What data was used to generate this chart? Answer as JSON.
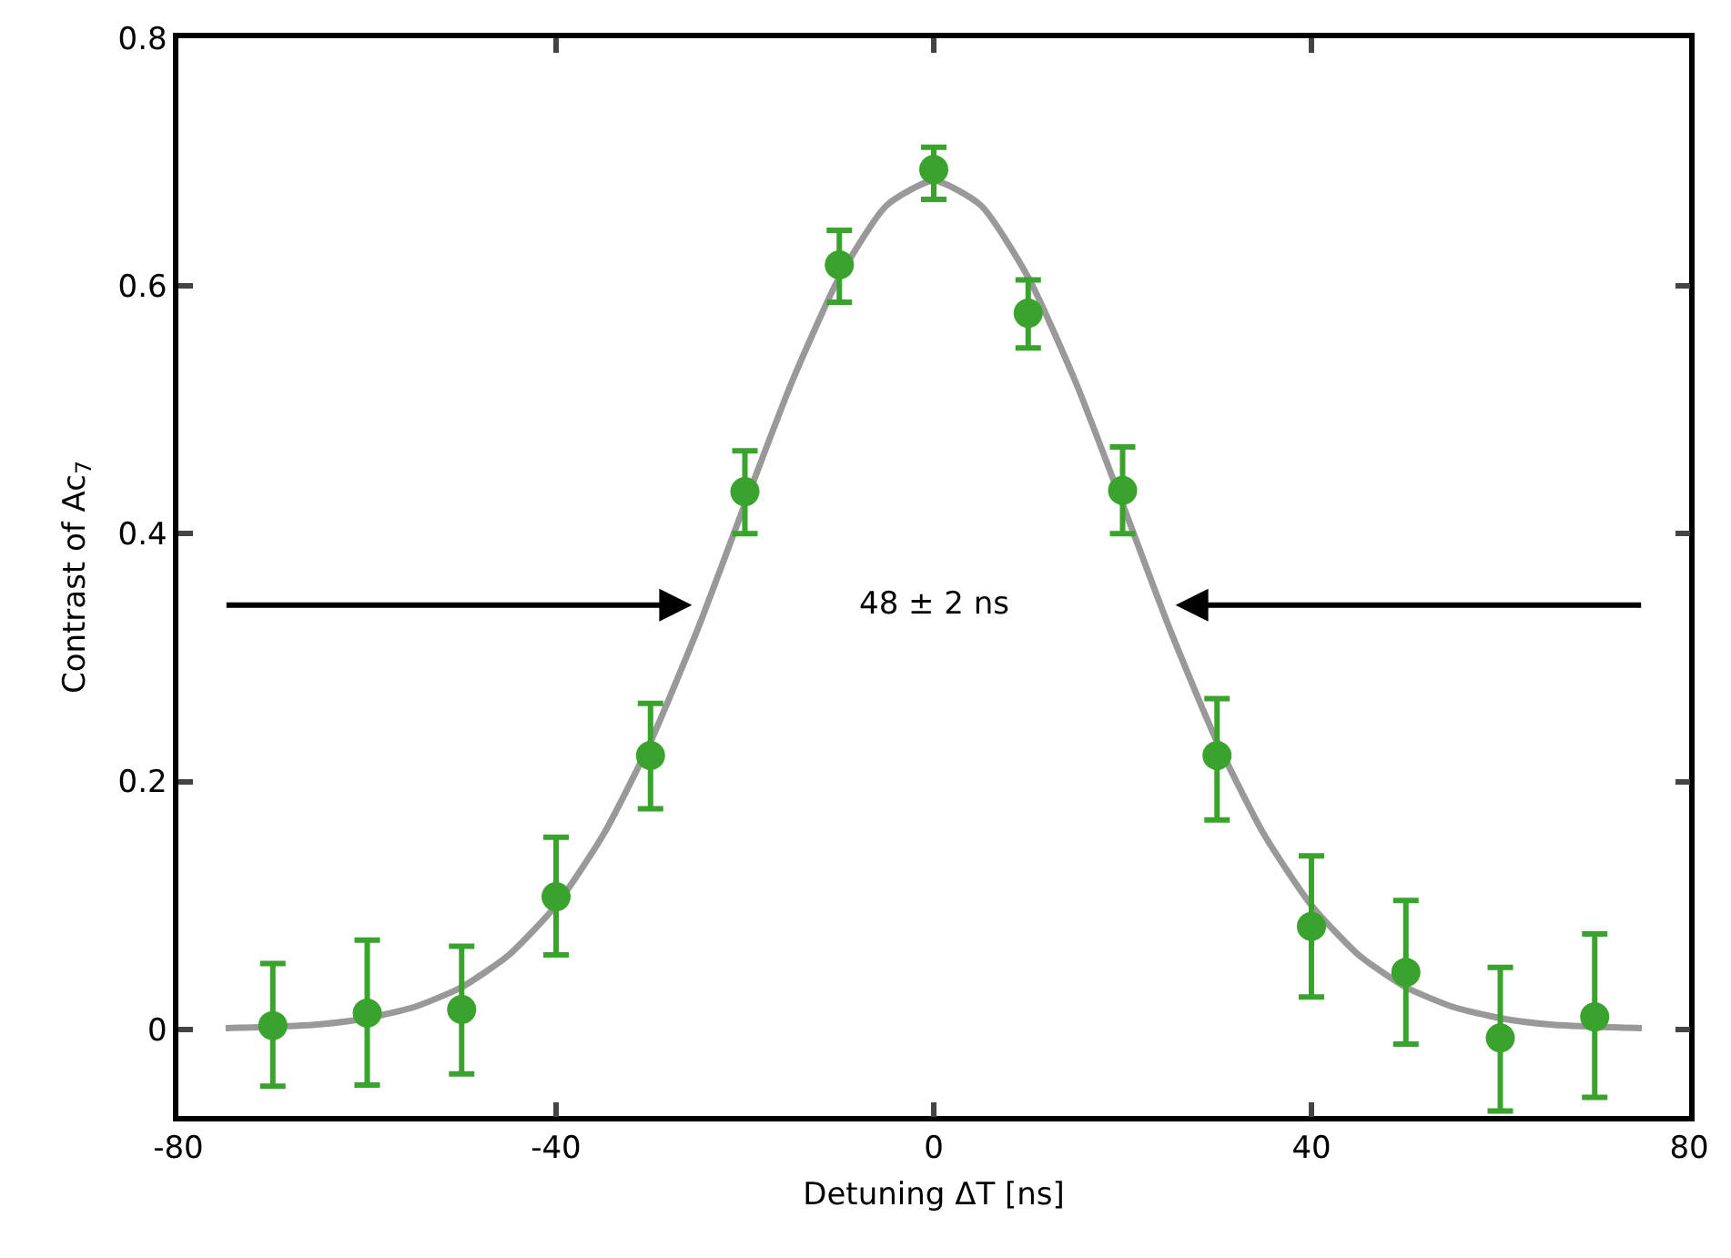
{
  "chart_data": {
    "type": "scatter",
    "xlabel": "Detuning ΔT [ns]",
    "ylabel": "Contrast of Ac$_{7}$",
    "xlim": [
      -80,
      80
    ],
    "xticks": [
      -80,
      -40,
      0,
      40,
      80
    ],
    "ylim": [
      -0.07,
      0.8
    ],
    "yticks": [
      0,
      {
        "value": 0.2,
        "label": "0.2"
      },
      {
        "value": 0.4,
        "label": "0.4"
      },
      {
        "value": 0.6,
        "label": "0.6"
      },
      {
        "value": 0.8,
        "label": "0.8"
      }
    ],
    "grid": false,
    "marker": "circle",
    "annotations": [
      "48 ± 2 ns"
    ],
    "series": [
      {
        "type": "line",
        "color": "#999999",
        "marker": "none",
        "x": [
          -75,
          -70,
          -65,
          -60,
          -55,
          -50,
          -45,
          -40,
          -35,
          -30,
          -25,
          -20,
          -15,
          -10,
          -5,
          0,
          5,
          10,
          15,
          20,
          25,
          30,
          35,
          40,
          45,
          50,
          55,
          60,
          65,
          70,
          75
        ],
        "values": [
          0.001,
          0.002,
          0.004,
          0.009,
          0.018,
          0.034,
          0.06,
          0.1,
          0.157,
          0.232,
          0.323,
          0.424,
          0.523,
          0.607,
          0.665,
          0.685,
          0.665,
          0.607,
          0.523,
          0.424,
          0.323,
          0.232,
          0.157,
          0.1,
          0.06,
          0.034,
          0.018,
          0.009,
          0.004,
          0.002,
          0.001
        ]
      },
      {
        "color": "#3aa32d",
        "x": [
          -70,
          -60,
          -50,
          -40,
          -30,
          -20,
          -10,
          0,
          10,
          20,
          30,
          40,
          50,
          60,
          70
        ],
        "values": [
          0.003,
          0.013,
          0.016,
          0.107,
          0.221,
          0.434,
          0.617,
          0.694,
          0.578,
          0.435,
          0.221,
          0.083,
          0.046,
          -0.007,
          0.01
        ],
        "errors": [
          [
            -0.046,
            0.053
          ],
          [
            -0.045,
            0.072
          ],
          [
            -0.036,
            0.067
          ],
          [
            0.06,
            0.155
          ],
          [
            0.178,
            0.263
          ],
          [
            0.4,
            0.467
          ],
          [
            0.587,
            0.645
          ],
          [
            0.67,
            0.712
          ],
          [
            0.55,
            0.605
          ],
          [
            0.4,
            0.47
          ],
          [
            0.169,
            0.267
          ],
          [
            0.026,
            0.14
          ],
          [
            -0.012,
            0.104
          ],
          [
            -0.066,
            0.05
          ],
          [
            -0.055,
            0.077
          ]
        ]
      }
    ]
  }
}
